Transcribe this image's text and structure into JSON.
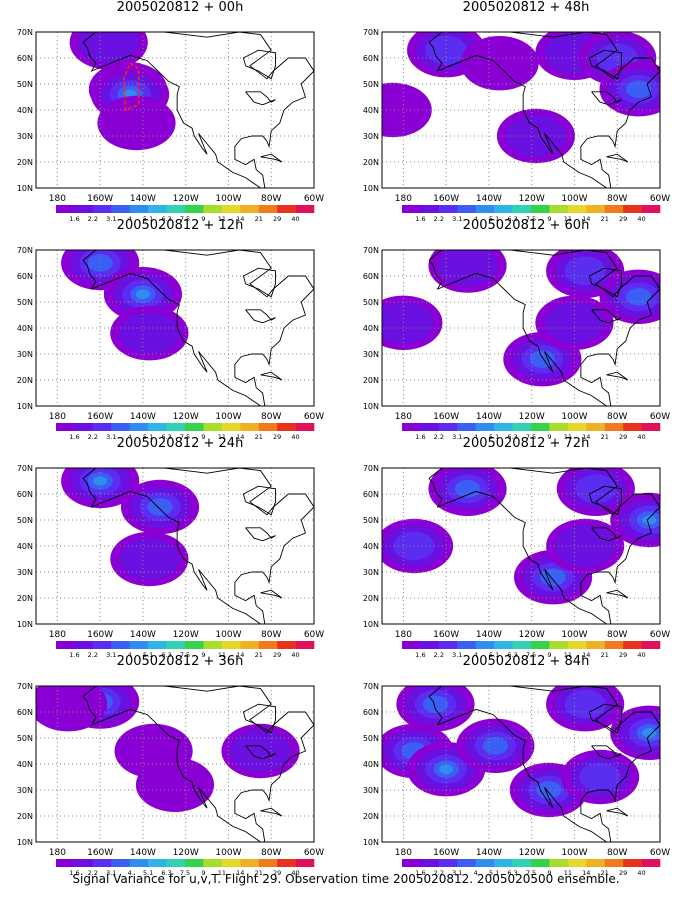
{
  "caption": "Signal Variance for u,v,T. Flight 29. Observation time 2005020812. 2005020500 ensemble.",
  "colors": {
    "levels": [
      "#8a00d4",
      "#6a10e0",
      "#5a2df0",
      "#3b5ef5",
      "#2f8cf0",
      "#2fb4e6",
      "#2fd2b4",
      "#36d24a",
      "#a8dd2c",
      "#e6d82a",
      "#f0b024",
      "#f07a1c",
      "#e8321e",
      "#e0105a"
    ],
    "coast": "#000000",
    "grid": "#888888",
    "track": "#ff2020"
  },
  "chart_data": [
    {
      "type": "heatmap",
      "title": "2005020812 + 00h",
      "lead_hours": 0,
      "xlim": [
        -190,
        -60
      ],
      "ylim": [
        10,
        70
      ],
      "x_ticks": [
        "180",
        "160W",
        "140W",
        "120W",
        "100W",
        "80W",
        "60W"
      ],
      "y_ticks": [
        "10N",
        "20N",
        "30N",
        "40N",
        "50N",
        "60N",
        "70N"
      ],
      "colorbar": [
        "1.6",
        "2.2",
        "3.1",
        "4",
        "5.1",
        "6.3",
        "7.5",
        "9",
        "11",
        "14",
        "21",
        "29",
        "40"
      ],
      "features": [
        {
          "lon": -156,
          "lat": 66,
          "level": 1
        },
        {
          "lon": -147,
          "lat": 48,
          "level": 2
        },
        {
          "lon": -146,
          "lat": 46,
          "level": 4
        },
        {
          "lon": -143,
          "lat": 35,
          "level": 0
        }
      ]
    },
    {
      "type": "heatmap",
      "title": "2005020812 + 48h",
      "lead_hours": 48,
      "xlim": [
        -190,
        -60
      ],
      "ylim": [
        10,
        70
      ],
      "x_ticks": [
        "180",
        "160W",
        "140W",
        "120W",
        "100W",
        "80W",
        "60W"
      ],
      "y_ticks": [
        "10N",
        "20N",
        "30N",
        "40N",
        "50N",
        "60N",
        "70N"
      ],
      "colorbar": [
        "1.6",
        "2.2",
        "3.1",
        "4",
        "5.1",
        "6.3",
        "7.5",
        "9",
        "11",
        "14",
        "21",
        "29",
        "40"
      ],
      "features": [
        {
          "lon": -160,
          "lat": 63,
          "level": 2
        },
        {
          "lon": -135,
          "lat": 58,
          "level": 0
        },
        {
          "lon": -100,
          "lat": 62,
          "level": 1
        },
        {
          "lon": -80,
          "lat": 60,
          "level": 2
        },
        {
          "lon": -70,
          "lat": 48,
          "level": 3
        },
        {
          "lon": -185,
          "lat": 40,
          "level": 0
        },
        {
          "lon": -118,
          "lat": 30,
          "level": 1
        }
      ]
    },
    {
      "type": "heatmap",
      "title": "2005020812 + 12h",
      "lead_hours": 12,
      "xlim": [
        -190,
        -60
      ],
      "ylim": [
        10,
        70
      ],
      "x_ticks": [
        "180",
        "160W",
        "140W",
        "120W",
        "100W",
        "80W",
        "60W"
      ],
      "y_ticks": [
        "10N",
        "20N",
        "30N",
        "40N",
        "50N",
        "60N",
        "70N"
      ],
      "colorbar": [
        "1.6",
        "2.2",
        "3.1",
        "4",
        "5.1",
        "6.3",
        "7.5",
        "9",
        "11",
        "14",
        "21",
        "29",
        "40"
      ],
      "features": [
        {
          "lon": -160,
          "lat": 65,
          "level": 3
        },
        {
          "lon": -140,
          "lat": 53,
          "level": 4
        },
        {
          "lon": -137,
          "lat": 38,
          "level": 1
        }
      ]
    },
    {
      "type": "heatmap",
      "title": "2005020812 + 60h",
      "lead_hours": 60,
      "xlim": [
        -190,
        -60
      ],
      "ylim": [
        10,
        70
      ],
      "x_ticks": [
        "180",
        "160W",
        "140W",
        "120W",
        "100W",
        "80W",
        "60W"
      ],
      "y_ticks": [
        "10N",
        "20N",
        "30N",
        "40N",
        "50N",
        "60N",
        "70N"
      ],
      "colorbar": [
        "1.6",
        "2.2",
        "3.1",
        "4",
        "5.1",
        "6.3",
        "7.5",
        "9",
        "11",
        "14",
        "21",
        "29",
        "40"
      ],
      "features": [
        {
          "lon": -150,
          "lat": 64,
          "level": 1
        },
        {
          "lon": -95,
          "lat": 62,
          "level": 2
        },
        {
          "lon": -70,
          "lat": 52,
          "level": 3
        },
        {
          "lon": -180,
          "lat": 42,
          "level": 1
        },
        {
          "lon": -115,
          "lat": 28,
          "level": 3
        },
        {
          "lon": -100,
          "lat": 42,
          "level": 1
        }
      ]
    },
    {
      "type": "heatmap",
      "title": "2005020812 + 24h",
      "lead_hours": 24,
      "xlim": [
        -190,
        -60
      ],
      "ylim": [
        10,
        70
      ],
      "x_ticks": [
        "180",
        "160W",
        "140W",
        "120W",
        "100W",
        "80W",
        "60W"
      ],
      "y_ticks": [
        "10N",
        "20N",
        "30N",
        "40N",
        "50N",
        "60N",
        "70N"
      ],
      "colorbar": [
        "1.6",
        "2.2",
        "3.1",
        "4",
        "5.1",
        "6.3",
        "7.5",
        "9",
        "11",
        "14",
        "21",
        "29",
        "40"
      ],
      "features": [
        {
          "lon": -160,
          "lat": 65,
          "level": 4
        },
        {
          "lon": -132,
          "lat": 55,
          "level": 3
        },
        {
          "lon": -137,
          "lat": 35,
          "level": 1
        }
      ]
    },
    {
      "type": "heatmap",
      "title": "2005020812 + 72h",
      "lead_hours": 72,
      "xlim": [
        -190,
        -60
      ],
      "ylim": [
        10,
        70
      ],
      "x_ticks": [
        "180",
        "160W",
        "140W",
        "120W",
        "100W",
        "80W",
        "60W"
      ],
      "y_ticks": [
        "10N",
        "20N",
        "30N",
        "40N",
        "50N",
        "60N",
        "70N"
      ],
      "colorbar": [
        "1.6",
        "2.2",
        "3.1",
        "4",
        "5.1",
        "6.3",
        "7.5",
        "9",
        "11",
        "14",
        "21",
        "29",
        "40"
      ],
      "features": [
        {
          "lon": -150,
          "lat": 62,
          "level": 3
        },
        {
          "lon": -90,
          "lat": 62,
          "level": 2
        },
        {
          "lon": -65,
          "lat": 50,
          "level": 4
        },
        {
          "lon": -175,
          "lat": 40,
          "level": 2
        },
        {
          "lon": -110,
          "lat": 28,
          "level": 3
        },
        {
          "lon": -95,
          "lat": 40,
          "level": 1
        }
      ]
    },
    {
      "type": "heatmap",
      "title": "2005020812 + 36h",
      "lead_hours": 36,
      "xlim": [
        -190,
        -60
      ],
      "ylim": [
        10,
        70
      ],
      "x_ticks": [
        "180",
        "160W",
        "140W",
        "120W",
        "100W",
        "80W",
        "60W"
      ],
      "y_ticks": [
        "10N",
        "20N",
        "30N",
        "40N",
        "50N",
        "60N",
        "70N"
      ],
      "colorbar": [
        "1.6",
        "2.2",
        "3.1",
        "4",
        "5.1",
        "6.3",
        "7.5",
        "9",
        "11",
        "14",
        "21",
        "29",
        "40"
      ],
      "features": [
        {
          "lon": -160,
          "lat": 64,
          "level": 3
        },
        {
          "lon": -135,
          "lat": 45,
          "level": 0
        },
        {
          "lon": -125,
          "lat": 32,
          "level": 0
        },
        {
          "lon": -85,
          "lat": 45,
          "level": 1
        },
        {
          "lon": -175,
          "lat": 63,
          "level": 0
        }
      ]
    },
    {
      "type": "heatmap",
      "title": "2005020812 + 84h",
      "lead_hours": 84,
      "xlim": [
        -190,
        -60
      ],
      "ylim": [
        10,
        70
      ],
      "x_ticks": [
        "180",
        "160W",
        "140W",
        "120W",
        "100W",
        "80W",
        "60W"
      ],
      "y_ticks": [
        "10N",
        "20N",
        "30N",
        "40N",
        "50N",
        "60N",
        "70N"
      ],
      "colorbar": [
        "1.6",
        "2.2",
        "3.1",
        "4",
        "5.1",
        "6.3",
        "7.5",
        "9",
        "11",
        "14",
        "21",
        "29",
        "40"
      ],
      "features": [
        {
          "lon": -165,
          "lat": 63,
          "level": 3
        },
        {
          "lon": -95,
          "lat": 63,
          "level": 2
        },
        {
          "lon": -65,
          "lat": 52,
          "level": 4
        },
        {
          "lon": -175,
          "lat": 45,
          "level": 3
        },
        {
          "lon": -160,
          "lat": 38,
          "level": 4
        },
        {
          "lon": -137,
          "lat": 47,
          "level": 3
        },
        {
          "lon": -112,
          "lat": 30,
          "level": 3
        },
        {
          "lon": -88,
          "lat": 35,
          "level": 2
        }
      ]
    }
  ]
}
